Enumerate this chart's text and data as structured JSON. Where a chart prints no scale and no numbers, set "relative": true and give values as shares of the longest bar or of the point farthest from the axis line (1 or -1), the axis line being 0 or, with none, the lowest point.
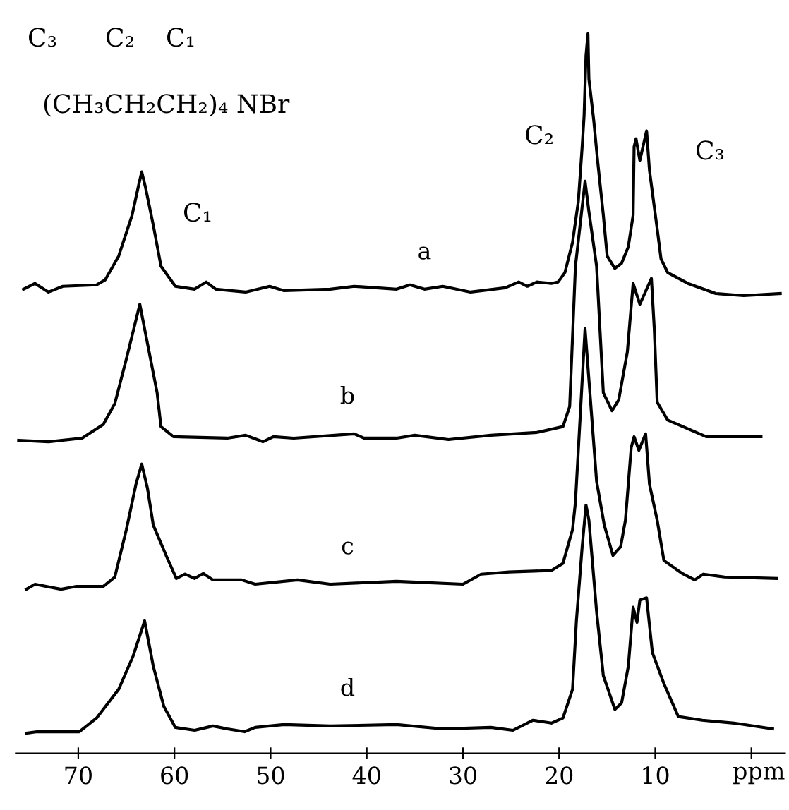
{
  "chart_data": {
    "type": "line",
    "relative": true,
    "xlabel": "ppm",
    "xlim": [
      76.5,
      -3.5
    ],
    "xticks": [
      70,
      60,
      50,
      40,
      30,
      20,
      10,
      {
        "value": 0,
        "label": null
      }
    ],
    "grid": false,
    "legend": false,
    "marker": "none",
    "line_style": "solid",
    "annotations": [
      "C₃",
      "C₂",
      "C₁",
      "(CH₃CH₂CH₂)₄ NBr",
      "C₁",
      "C₂",
      "C₃"
    ],
    "series": [
      {
        "name": "a",
        "color": "#000000",
        "x": [
          75.7,
          74.5,
          73.1,
          71.6,
          68.1,
          67.2,
          65.8,
          64.4,
          63.7,
          63.4,
          63.0,
          62.2,
          61.4,
          59.9,
          57.9,
          56.7,
          55.7,
          52.6,
          50.1,
          48.6,
          43.8,
          41.3,
          36.9,
          35.5,
          34.0,
          32.1,
          29.2,
          25.6,
          24.2,
          23.3,
          22.3,
          20.8,
          20.1,
          19.4,
          18.6,
          18.0,
          17.6,
          17.4,
          17.2,
          17.0,
          16.9,
          16.4,
          16.0,
          15.4,
          15.0,
          14.2,
          13.5,
          12.8,
          12.3,
          12.2,
          12.0,
          11.6,
          10.9,
          10.6,
          9.8,
          9.4,
          8.7,
          6.6,
          3.7,
          0.8,
          -3.0
        ],
        "values": [
          0.645,
          0.653,
          0.641,
          0.649,
          0.651,
          0.658,
          0.691,
          0.748,
          0.791,
          0.808,
          0.786,
          0.734,
          0.677,
          0.649,
          0.645,
          0.655,
          0.645,
          0.641,
          0.649,
          0.643,
          0.645,
          0.649,
          0.645,
          0.651,
          0.645,
          0.649,
          0.641,
          0.647,
          0.655,
          0.649,
          0.655,
          0.653,
          0.655,
          0.668,
          0.71,
          0.767,
          0.843,
          0.886,
          0.97,
          1,
          0.937,
          0.88,
          0.824,
          0.748,
          0.691,
          0.674,
          0.681,
          0.704,
          0.748,
          0.843,
          0.854,
          0.824,
          0.865,
          0.81,
          0.729,
          0.687,
          0.668,
          0.653,
          0.639,
          0.636,
          0.639
        ]
      },
      {
        "name": "b",
        "color": "#000000",
        "x": [
          76.2,
          73.1,
          69.6,
          67.4,
          66.2,
          65.0,
          63.6,
          61.8,
          61.4,
          60.1,
          54.5,
          52.6,
          50.8,
          49.7,
          47.6,
          41.3,
          40.3,
          36.9,
          35.0,
          31.5,
          27.1,
          22.3,
          19.6,
          18.9,
          18.3,
          17.3,
          16.9,
          16.1,
          15.4,
          14.5,
          13.8,
          12.9,
          12.3,
          11.6,
          10.4,
          10.1,
          9.8,
          8.7,
          4.7,
          -1.0
        ],
        "values": [
          0.435,
          0.433,
          0.438,
          0.457,
          0.486,
          0.548,
          0.624,
          0.501,
          0.454,
          0.44,
          0.438,
          0.442,
          0.433,
          0.44,
          0.438,
          0.444,
          0.438,
          0.438,
          0.442,
          0.436,
          0.442,
          0.446,
          0.454,
          0.482,
          0.677,
          0.795,
          0.753,
          0.677,
          0.501,
          0.476,
          0.491,
          0.558,
          0.653,
          0.624,
          0.66,
          0.59,
          0.488,
          0.463,
          0.44,
          0.44
        ]
      },
      {
        "name": "c",
        "color": "#000000",
        "x": [
          75.4,
          74.5,
          71.8,
          70.2,
          67.4,
          66.2,
          65.0,
          64.0,
          63.4,
          62.8,
          62.2,
          60.8,
          59.8,
          58.9,
          57.9,
          57.0,
          56.0,
          53.0,
          51.6,
          47.2,
          43.8,
          36.9,
          30.0,
          28.1,
          25.2,
          20.8,
          19.6,
          18.6,
          18.3,
          17.3,
          16.1,
          15.3,
          14.4,
          13.6,
          13.1,
          12.5,
          12.2,
          11.7,
          11.0,
          10.6,
          9.8,
          9.1,
          7.2,
          5.9,
          5.0,
          2.8,
          -2.6
        ],
        "values": [
          0.228,
          0.235,
          0.228,
          0.232,
          0.232,
          0.245,
          0.311,
          0.374,
          0.402,
          0.368,
          0.317,
          0.273,
          0.243,
          0.249,
          0.243,
          0.25,
          0.241,
          0.241,
          0.235,
          0.241,
          0.235,
          0.239,
          0.235,
          0.249,
          0.252,
          0.254,
          0.264,
          0.311,
          0.349,
          0.59,
          0.378,
          0.317,
          0.275,
          0.287,
          0.324,
          0.425,
          0.44,
          0.421,
          0.444,
          0.374,
          0.324,
          0.268,
          0.25,
          0.241,
          0.249,
          0.245,
          0.243
        ]
      },
      {
        "name": "d",
        "color": "#000000",
        "x": [
          75.4,
          74.3,
          69.9,
          68.1,
          65.8,
          64.3,
          63.1,
          62.2,
          61.1,
          59.9,
          57.9,
          56.0,
          54.5,
          52.7,
          51.6,
          48.6,
          43.8,
          36.9,
          32.1,
          27.1,
          24.8,
          22.7,
          20.8,
          19.6,
          18.6,
          18.2,
          17.6,
          17.2,
          16.9,
          16.1,
          15.4,
          14.2,
          13.5,
          12.8,
          12.3,
          11.9,
          11.6,
          10.9,
          10.3,
          9.1,
          7.6,
          5.1,
          1.8,
          -2.2
        ],
        "values": [
          0.028,
          0.03,
          0.03,
          0.049,
          0.089,
          0.135,
          0.184,
          0.121,
          0.065,
          0.036,
          0.032,
          0.038,
          0.034,
          0.03,
          0.036,
          0.04,
          0.038,
          0.04,
          0.034,
          0.036,
          0.032,
          0.046,
          0.042,
          0.049,
          0.089,
          0.184,
          0.287,
          0.345,
          0.324,
          0.197,
          0.108,
          0.061,
          0.07,
          0.121,
          0.203,
          0.182,
          0.213,
          0.216,
          0.14,
          0.097,
          0.051,
          0.046,
          0.042,
          0.034
        ]
      }
    ]
  }
}
